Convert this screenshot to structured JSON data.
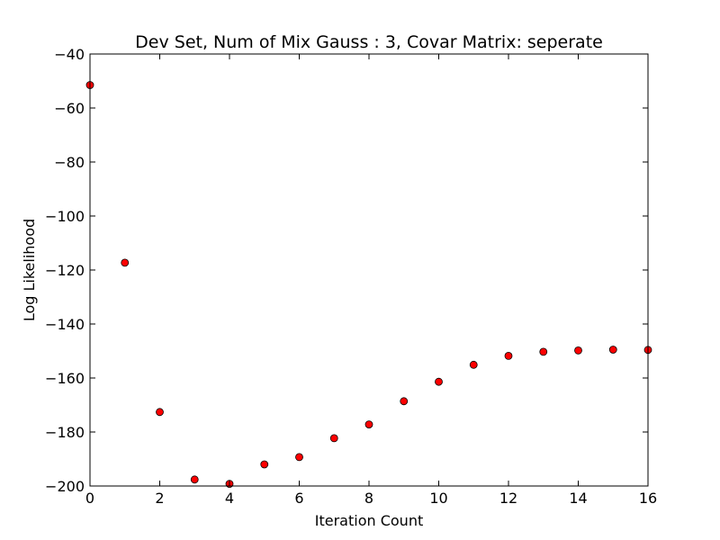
{
  "chart_data": {
    "type": "scatter",
    "title": "Dev Set, Num of Mix Gauss : 3, Covar Matrix: seperate",
    "xlabel": "Iteration Count",
    "ylabel": "Log Likelihood",
    "xlim": [
      0,
      16
    ],
    "ylim": [
      -200,
      -40
    ],
    "xticks": [
      "0",
      "2",
      "4",
      "6",
      "8",
      "10",
      "12",
      "14",
      "16"
    ],
    "xtick_values": [
      0,
      2,
      4,
      6,
      8,
      10,
      12,
      14,
      16
    ],
    "yticks": [
      "−40",
      "−60",
      "−80",
      "−100",
      "−120",
      "−140",
      "−160",
      "−180",
      "−200"
    ],
    "ytick_values": [
      -40,
      -60,
      -80,
      -100,
      -120,
      -140,
      -160,
      -180,
      -200
    ],
    "grid": false,
    "marker_color": "#ff0000",
    "marker_edge_color": "#000000",
    "series": [
      {
        "x": [
          0,
          1,
          2,
          3,
          4,
          5,
          6,
          7,
          8,
          9,
          10,
          11,
          12,
          13,
          14,
          15,
          16
        ],
        "y": [
          -51.5,
          -117.3,
          -172.6,
          -197.6,
          -199.2,
          -192.0,
          -189.3,
          -182.3,
          -177.2,
          -168.6,
          -161.4,
          -155.1,
          -151.8,
          -150.3,
          -149.8,
          -149.5,
          -149.6
        ]
      }
    ]
  }
}
